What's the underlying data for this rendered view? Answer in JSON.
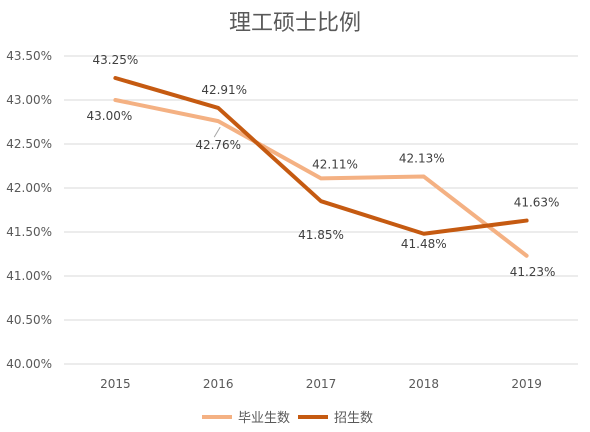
{
  "chart_data": {
    "type": "line",
    "title": "理工硕士比例",
    "categories": [
      "2015",
      "2016",
      "2017",
      "2018",
      "2019"
    ],
    "ylim": [
      40.0,
      43.5
    ],
    "yticks": [
      "40.00%",
      "40.50%",
      "41.00%",
      "41.50%",
      "42.00%",
      "42.50%",
      "43.00%",
      "43.50%"
    ],
    "grid": true,
    "legend_position": "bottom",
    "series": [
      {
        "name": "毕业生数",
        "color": "#f4b183",
        "values": [
          43.0,
          42.76,
          42.11,
          42.13,
          41.23
        ],
        "labels": [
          "43.00%",
          "42.76%",
          "42.11%",
          "42.13%",
          "41.23%"
        ]
      },
      {
        "name": "招生数",
        "color": "#c55a11",
        "values": [
          43.25,
          42.91,
          41.85,
          41.48,
          41.63
        ],
        "labels": [
          "43.25%",
          "42.91%",
          "41.85%",
          "41.48%",
          "41.63%"
        ]
      }
    ]
  }
}
